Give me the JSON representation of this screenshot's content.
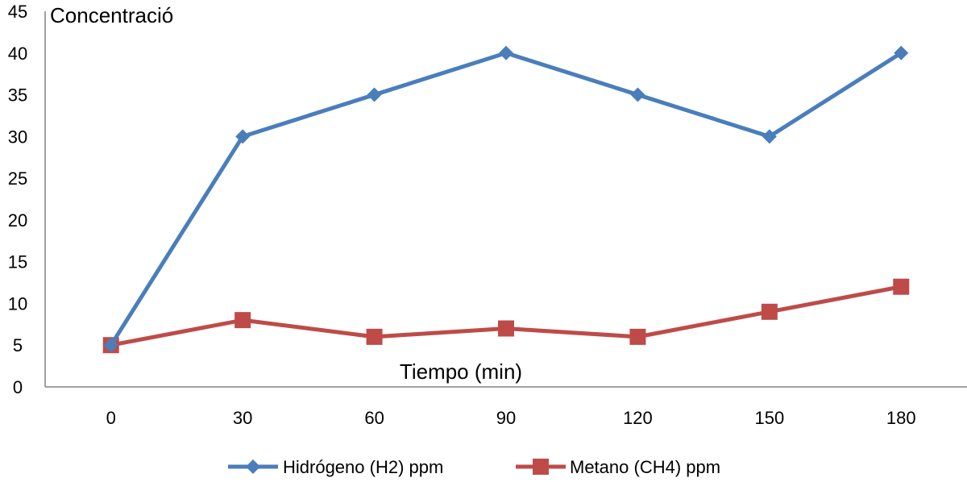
{
  "chart_data": {
    "type": "line",
    "title": "",
    "xlabel": "Tiempo (min)",
    "ylabel": "Concentració",
    "categories": [
      "0",
      "30",
      "60",
      "90",
      "120",
      "150",
      "180"
    ],
    "ylim": [
      0,
      45
    ],
    "yticks": [
      0,
      5,
      10,
      15,
      20,
      25,
      30,
      35,
      40,
      45
    ],
    "grid": false,
    "legend_position": "bottom",
    "series": [
      {
        "name": "Hidrógeno (H2) ppm",
        "marker": "diamond",
        "color": "#4a7ebb",
        "values": [
          5,
          30,
          35,
          40,
          35,
          30,
          40
        ]
      },
      {
        "name": "Metano (CH4) ppm",
        "marker": "square",
        "color": "#be4b48",
        "values": [
          5,
          8,
          6,
          7,
          6,
          9,
          12
        ]
      }
    ]
  }
}
